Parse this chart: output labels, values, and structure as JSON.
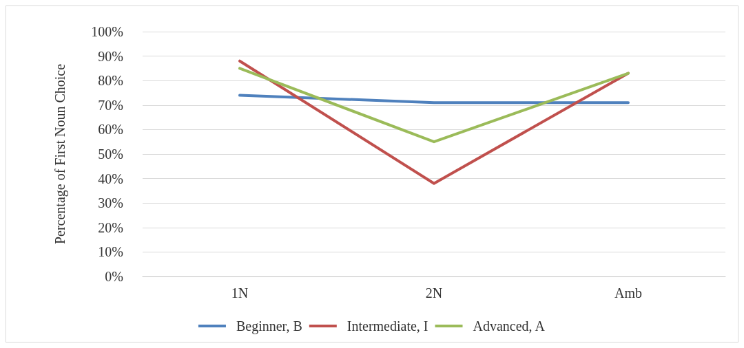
{
  "chart_data": {
    "type": "line",
    "ylabel": "Percentage of First Noun Choice",
    "categories": [
      "1N",
      "2N",
      "Amb"
    ],
    "series": [
      {
        "name": "Beginner, B",
        "color": "#4f81bd",
        "values": [
          74,
          71,
          71
        ]
      },
      {
        "name": "Intermediate, I",
        "color": "#c0504d",
        "values": [
          88,
          38,
          83
        ]
      },
      {
        "name": "Advanced, A",
        "color": "#9bbb59",
        "values": [
          85,
          55,
          83
        ]
      }
    ],
    "ylim": [
      0,
      100
    ],
    "yticks": [
      {
        "value": 0,
        "label": "0%"
      },
      {
        "value": 10,
        "label": "10%"
      },
      {
        "value": 20,
        "label": "20%"
      },
      {
        "value": 30,
        "label": "30%"
      },
      {
        "value": 40,
        "label": "40%"
      },
      {
        "value": 50,
        "label": "50%"
      },
      {
        "value": 60,
        "label": "60%"
      },
      {
        "value": 70,
        "label": "70%"
      },
      {
        "value": 80,
        "label": "80%"
      },
      {
        "value": 90,
        "label": "90%"
      },
      {
        "value": 100,
        "label": "100%"
      }
    ],
    "grid": "y",
    "legend": "bottom",
    "marker": "none",
    "line_style": "solid"
  }
}
